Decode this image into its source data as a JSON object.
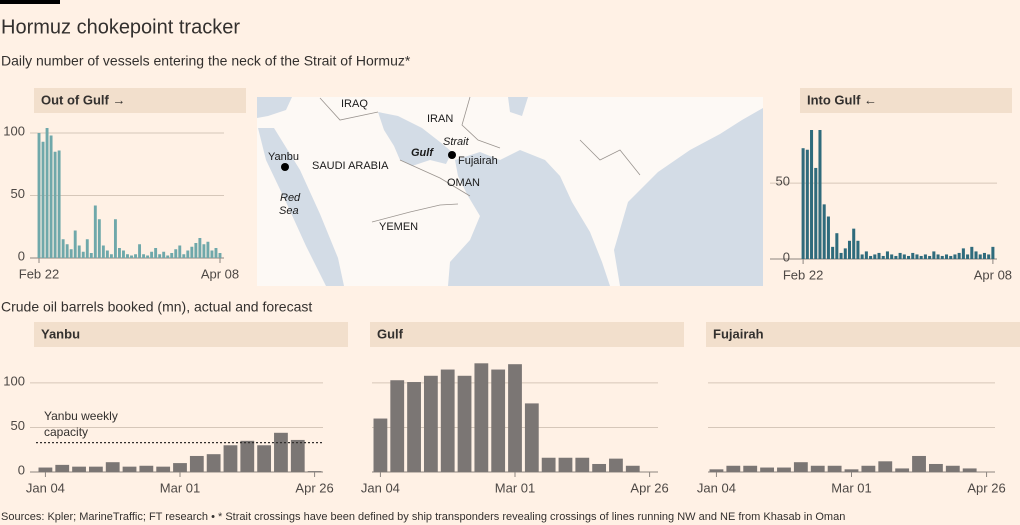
{
  "title": "Hormuz chokepoint tracker",
  "subtitle": "Daily number of vessels entering the neck of the Strait of Hormuz*",
  "section_title": "Crude oil barrels booked (mn), actual and forecast",
  "source": "Sources: Kpler; MarineTraffic; FT research • * Strait crossings have been defined by ship transponders revealing crossings of lines running NW and NE from Khasab in Oman",
  "map": {
    "labels": [
      "IRAQ",
      "IRAN",
      "Strait",
      "Gulf",
      "Fujairah",
      "Yanbu",
      "SAUDI ARABIA",
      "Red",
      "Sea",
      "OMAN",
      "YEMEN"
    ]
  },
  "chart_data": [
    {
      "type": "bar",
      "title": "Out of Gulf →",
      "color": "#6fa8aa",
      "categories": [
        "Feb 22",
        null,
        null,
        null,
        null,
        null,
        null,
        null,
        null,
        null,
        null,
        null,
        null,
        null,
        null,
        null,
        null,
        null,
        null,
        null,
        null,
        null,
        null,
        null,
        null,
        null,
        null,
        null,
        null,
        null,
        null,
        null,
        null,
        null,
        null,
        null,
        null,
        null,
        null,
        null,
        null,
        null,
        null,
        null,
        null,
        "Apr 08"
      ],
      "values": [
        100,
        93,
        104,
        98,
        85,
        86,
        15,
        11,
        7,
        22,
        10,
        5,
        15,
        4,
        42,
        31,
        10,
        6,
        3,
        31,
        8,
        6,
        3,
        2,
        3,
        11,
        3,
        2,
        5,
        8,
        3,
        5,
        2,
        4,
        7,
        10,
        3,
        6,
        9,
        12,
        16,
        11,
        13,
        6,
        8,
        4
      ],
      "ylim": [
        0,
        110
      ],
      "yticks": [
        0,
        50,
        100
      ],
      "ytick_labels": true,
      "grid": true
    },
    {
      "type": "bar",
      "title": "Into Gulf ←",
      "color": "#2f6b7c",
      "categories": [
        "Feb 22",
        null,
        null,
        null,
        null,
        null,
        null,
        null,
        null,
        null,
        null,
        null,
        null,
        null,
        null,
        null,
        null,
        null,
        null,
        null,
        null,
        null,
        null,
        null,
        null,
        null,
        null,
        null,
        null,
        null,
        null,
        null,
        null,
        null,
        null,
        null,
        null,
        null,
        null,
        null,
        null,
        null,
        null,
        null,
        null,
        "Apr 08"
      ],
      "values": [
        73,
        72,
        85,
        60,
        85,
        36,
        28,
        8,
        17,
        4,
        7,
        12,
        20,
        12,
        3,
        5,
        2,
        3,
        4,
        2,
        5,
        3,
        2,
        4,
        3,
        2,
        4,
        3,
        2,
        3,
        2,
        5,
        3,
        2,
        3,
        2,
        3,
        4,
        7,
        3,
        8,
        5,
        3,
        4,
        3,
        8
      ],
      "ylim": [
        0,
        85
      ],
      "yticks": [
        0,
        50
      ],
      "ytick_labels": true,
      "grid": true
    },
    {
      "type": "bar",
      "title": "Yanbu",
      "color": "#7b7674",
      "categories": [
        "Jan 04",
        null,
        null,
        null,
        null,
        null,
        null,
        null,
        "Mar 01",
        null,
        null,
        null,
        null,
        null,
        null,
        null,
        "Apr 26"
      ],
      "values": [
        5,
        8,
        6,
        6,
        11,
        6,
        7,
        6,
        10,
        18,
        20,
        30,
        35,
        30,
        44,
        36,
        1
      ],
      "ylim": [
        0,
        110
      ],
      "yticks": [
        0,
        50,
        100
      ],
      "ytick_labels": true,
      "grid": true,
      "annotation": {
        "text": "Yanbu weekly capacity",
        "value": 33
      }
    },
    {
      "type": "bar",
      "title": "Gulf",
      "color": "#7b7674",
      "categories": [
        "Jan 04",
        null,
        null,
        null,
        null,
        null,
        null,
        null,
        "Mar 01",
        null,
        null,
        null,
        null,
        null,
        null,
        null,
        "Apr 26"
      ],
      "values": [
        60,
        103,
        101,
        108,
        115,
        108,
        122,
        115,
        121,
        77,
        16,
        16,
        16,
        9,
        15,
        7,
        0
      ],
      "ylim": [
        0,
        110
      ],
      "yticks": [
        0,
        50,
        100
      ],
      "ytick_labels": false,
      "grid": true
    },
    {
      "type": "bar",
      "title": "Fujairah",
      "color": "#7b7674",
      "categories": [
        "Jan 04",
        null,
        null,
        null,
        null,
        null,
        null,
        null,
        "Mar 01",
        null,
        null,
        null,
        null,
        null,
        null,
        null,
        "Apr 26"
      ],
      "values": [
        3,
        7,
        7,
        5,
        5,
        11,
        7,
        7,
        3,
        7,
        12,
        4,
        18,
        9,
        7,
        4,
        0
      ],
      "ylim": [
        0,
        110
      ],
      "yticks": [
        0,
        50,
        100
      ],
      "ytick_labels": false,
      "grid": true
    }
  ]
}
